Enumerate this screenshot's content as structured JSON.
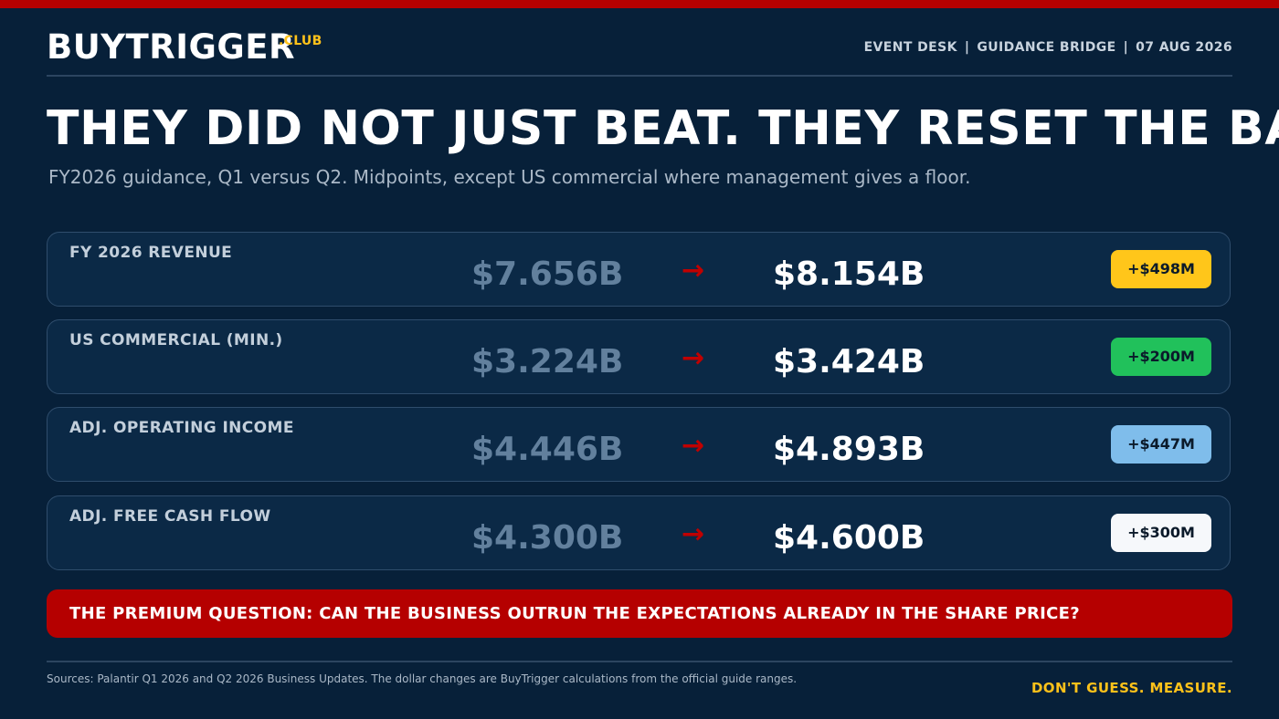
{
  "brand": {
    "name": "BUYTRIGGER",
    "suffix": ".CLUB"
  },
  "header": {
    "section": "EVENT DESK",
    "topic": "GUIDANCE BRIDGE",
    "date": "07 AUG 2026",
    "separator": "|"
  },
  "headline": "THEY DID NOT JUST BEAT. THEY RESET THE BASE.",
  "subhead": "FY2026 guidance, Q1 versus Q2. Midpoints, except US commercial where management gives a floor.",
  "arrow_glyph": "→",
  "rows": [
    {
      "label": "FY 2026 REVENUE",
      "from": "$7.656B",
      "to": "$8.154B",
      "change": "+$498M",
      "badge_color": "#ffc61a"
    },
    {
      "label": "US COMMERCIAL (MIN.)",
      "from": "$3.224B",
      "to": "$3.424B",
      "change": "+$200M",
      "badge_color": "#21c15b"
    },
    {
      "label": "ADJ. OPERATING INCOME",
      "from": "$4.446B",
      "to": "$4.893B",
      "change": "+$447M",
      "badge_color": "#7fbdeb"
    },
    {
      "label": "ADJ. FREE CASH FLOW",
      "from": "$4.300B",
      "to": "$4.600B",
      "change": "+$300M",
      "badge_color": "#f6f8fb"
    }
  ],
  "banner": "THE PREMIUM QUESTION: CAN THE BUSINESS OUTRUN THE EXPECTATIONS ALREADY IN THE SHARE PRICE?",
  "footer": {
    "sources": "Sources: Palantir Q1 2026 and Q2 2026 Business Updates. The dollar changes are BuyTrigger calculations from the official guide ranges.",
    "tagline": "DON'T GUESS. MEASURE."
  },
  "colors": {
    "background": "#072039",
    "accent_red": "#b50000",
    "accent_yellow": "#ffc21a"
  }
}
